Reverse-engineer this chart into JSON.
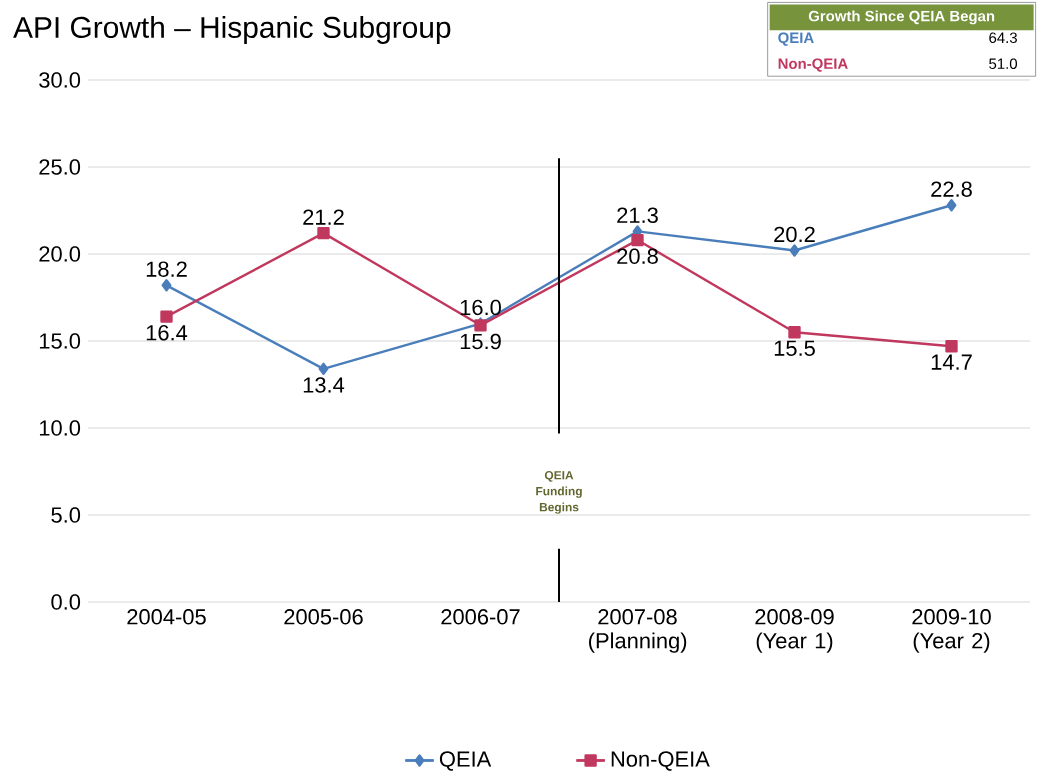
{
  "chart_data": {
    "type": "line",
    "title": "API Growth – Hispanic Subgroup",
    "categories": [
      "2004-05",
      "2005-06",
      "2006-07",
      "2007-08 (Planning)",
      "2008-09 (Year 1)",
      "2009-10 (Year 2)"
    ],
    "series": [
      {
        "name": "QEIA",
        "color": "#4a7ebb",
        "marker": "diamond",
        "values": [
          18.2,
          13.4,
          16.0,
          21.3,
          20.2,
          22.8
        ],
        "value_labels": [
          "18.2",
          "13.4",
          "16.0",
          "21.3",
          "20.2",
          "22.8"
        ]
      },
      {
        "name": "Non-QEIA",
        "color": "#c0385e",
        "marker": "square",
        "values": [
          16.4,
          21.2,
          15.9,
          20.8,
          15.5,
          14.7
        ],
        "value_labels": [
          "16.4",
          "21.2",
          "15.9",
          "20.8",
          "15.5",
          "14.7"
        ]
      }
    ],
    "ylim": [
      0,
      30
    ],
    "yticks": [
      {
        "value": 0,
        "label": "0.0"
      },
      {
        "value": 5,
        "label": "5.0"
      },
      {
        "value": 10,
        "label": "10.0"
      },
      {
        "value": 15,
        "label": "15.0"
      },
      {
        "value": 20,
        "label": "20.0"
      },
      {
        "value": 25,
        "label": "25.0"
      },
      {
        "value": 30,
        "label": "30.0"
      }
    ],
    "grid": "y",
    "legend": "bottom",
    "annotations": [
      "Growth Since QEIA Began",
      "QEIA",
      "64.3",
      "Non-QEIA",
      "51.0",
      "QEIA Funding Begins"
    ]
  }
}
